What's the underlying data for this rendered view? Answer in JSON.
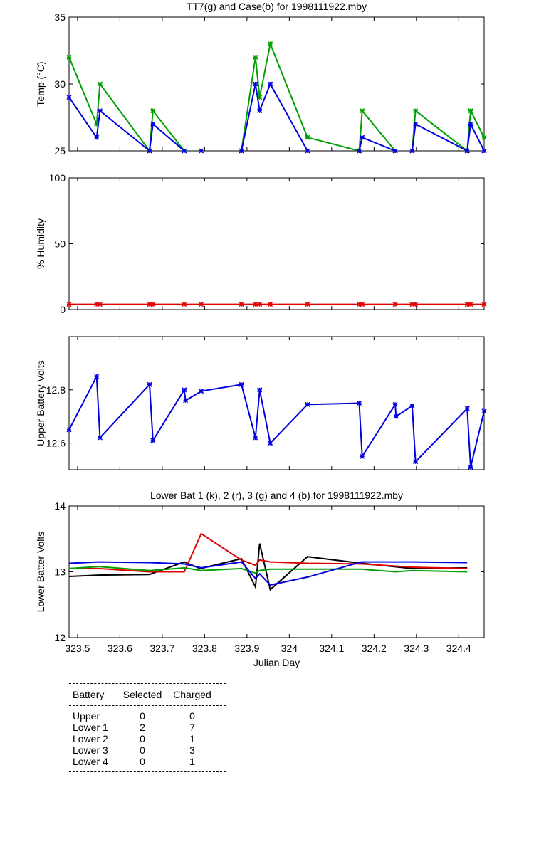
{
  "colors": {
    "green": "#00a000",
    "blue": "#0000e0",
    "red": "#e00000",
    "black": "#000000"
  },
  "chart_data": [
    {
      "type": "line",
      "title": "TT7(g) and Case(b) for 1998111922.mby",
      "xlabel": "",
      "ylabel": "Temp  (°C)",
      "xlim": [
        323.48,
        324.46
      ],
      "ylim": [
        25,
        35
      ],
      "yticks": [
        25,
        30,
        35
      ],
      "series": [
        {
          "color": "green",
          "markers": true,
          "segments": [
            [
              [
                323.48,
                32
              ],
              [
                323.545,
                27
              ],
              [
                323.553,
                30
              ],
              [
                323.67,
                25
              ],
              [
                323.678,
                28
              ],
              [
                323.752,
                25
              ]
            ],
            [
              [
                323.887,
                25
              ],
              [
                323.92,
                32
              ],
              [
                323.93,
                29
              ],
              [
                323.955,
                33
              ],
              [
                324.043,
                26
              ],
              [
                324.165,
                25
              ],
              [
                324.172,
                28
              ],
              [
                324.25,
                25
              ]
            ],
            [
              [
                324.29,
                25
              ],
              [
                324.298,
                28
              ],
              [
                324.42,
                25
              ],
              [
                324.428,
                28
              ],
              [
                324.46,
                26
              ]
            ]
          ]
        },
        {
          "color": "blue",
          "markers": true,
          "segments": [
            [
              [
                323.48,
                29
              ],
              [
                323.545,
                26
              ],
              [
                323.553,
                28
              ],
              [
                323.67,
                25
              ],
              [
                323.678,
                27
              ],
              [
                323.752,
                25
              ]
            ],
            [
              [
                323.792,
                25
              ]
            ],
            [
              [
                323.887,
                25
              ],
              [
                323.92,
                30
              ],
              [
                323.93,
                28
              ],
              [
                323.955,
                30
              ],
              [
                324.043,
                25
              ]
            ],
            [
              [
                324.165,
                25
              ],
              [
                324.172,
                26
              ],
              [
                324.25,
                25
              ]
            ],
            [
              [
                324.29,
                25
              ],
              [
                324.298,
                27
              ],
              [
                324.42,
                25
              ],
              [
                324.428,
                27
              ],
              [
                324.46,
                25
              ]
            ]
          ]
        }
      ]
    },
    {
      "type": "line",
      "title": "",
      "xlabel": "",
      "ylabel": "% Humidity",
      "xlim": [
        323.48,
        324.46
      ],
      "ylim": [
        0,
        100
      ],
      "yticks": [
        0,
        50,
        100
      ],
      "series": [
        {
          "color": "red",
          "markers": true,
          "segments": [
            [
              [
                323.48,
                4
              ],
              [
                323.545,
                4
              ],
              [
                323.553,
                4
              ],
              [
                323.67,
                4
              ],
              [
                323.678,
                4
              ],
              [
                323.752,
                4
              ],
              [
                323.792,
                4
              ],
              [
                323.887,
                4
              ],
              [
                323.92,
                4
              ],
              [
                323.93,
                4
              ],
              [
                323.955,
                4
              ],
              [
                324.043,
                4
              ],
              [
                324.165,
                4
              ],
              [
                324.172,
                4
              ],
              [
                324.25,
                4
              ],
              [
                324.29,
                4
              ],
              [
                324.298,
                4
              ],
              [
                324.42,
                4
              ],
              [
                324.428,
                4
              ],
              [
                324.46,
                4
              ]
            ]
          ]
        }
      ]
    },
    {
      "type": "line",
      "title": "",
      "xlabel": "",
      "ylabel": "Upper Battery Volts",
      "xlim": [
        323.48,
        324.46
      ],
      "ylim": [
        12.5,
        13.0
      ],
      "yticks": [
        12.6,
        12.8
      ],
      "series": [
        {
          "color": "blue",
          "markers": true,
          "segments": [
            [
              [
                323.48,
                12.65
              ],
              [
                323.545,
                12.85
              ],
              [
                323.553,
                12.62
              ],
              [
                323.67,
                12.82
              ],
              [
                323.678,
                12.61
              ],
              [
                323.752,
                12.8
              ],
              [
                323.755,
                12.76
              ],
              [
                323.792,
                12.795
              ],
              [
                323.887,
                12.82
              ],
              [
                323.92,
                12.62
              ],
              [
                323.93,
                12.8
              ],
              [
                323.955,
                12.6
              ],
              [
                324.043,
                12.745
              ],
              [
                324.165,
                12.75
              ],
              [
                324.172,
                12.55
              ],
              [
                324.25,
                12.745
              ],
              [
                324.252,
                12.7
              ],
              [
                324.29,
                12.74
              ],
              [
                324.298,
                12.53
              ],
              [
                324.42,
                12.73
              ],
              [
                324.428,
                12.51
              ],
              [
                324.46,
                12.72
              ]
            ]
          ]
        }
      ]
    },
    {
      "type": "line",
      "title": "Lower Bat 1 (k), 2 (r), 3 (g) and 4 (b) for 1998111922.mby",
      "xlabel": "Julian Day",
      "ylabel": "Lower Batter Volts",
      "xlim": [
        323.48,
        324.46
      ],
      "ylim": [
        12,
        14
      ],
      "yticks": [
        12,
        13,
        14
      ],
      "xticks": [
        323.5,
        323.6,
        323.7,
        323.8,
        323.9,
        324,
        324.1,
        324.2,
        324.3,
        324.4
      ],
      "xticklabels": [
        "323.5",
        "323.6",
        "323.7",
        "323.8",
        "323.9",
        "324",
        "324.1",
        "324.2",
        "324.3",
        "324.4"
      ],
      "series": [
        {
          "color": "black",
          "markers": false,
          "segments": [
            [
              [
                323.48,
                12.93
              ],
              [
                323.55,
                12.95
              ],
              [
                323.67,
                12.96
              ],
              [
                323.752,
                13.15
              ],
              [
                323.79,
                13.05
              ],
              [
                323.887,
                13.2
              ],
              [
                323.92,
                12.77
              ],
              [
                323.93,
                13.43
              ],
              [
                323.955,
                12.73
              ],
              [
                324.043,
                13.23
              ],
              [
                324.17,
                13.13
              ],
              [
                324.29,
                13.05
              ],
              [
                324.42,
                13.06
              ]
            ]
          ]
        },
        {
          "color": "red",
          "markers": false,
          "segments": [
            [
              [
                323.48,
                13.05
              ],
              [
                323.55,
                13.05
              ],
              [
                323.67,
                13.0
              ],
              [
                323.752,
                13.0
              ],
              [
                323.792,
                13.58
              ],
              [
                323.887,
                13.18
              ],
              [
                323.92,
                13.1
              ],
              [
                323.93,
                13.18
              ],
              [
                323.955,
                13.15
              ],
              [
                324.043,
                13.13
              ],
              [
                324.17,
                13.12
              ],
              [
                324.29,
                13.07
              ],
              [
                324.42,
                13.05
              ]
            ]
          ]
        },
        {
          "color": "green",
          "markers": false,
          "segments": [
            [
              [
                323.48,
                13.05
              ],
              [
                323.55,
                13.08
              ],
              [
                323.67,
                13.02
              ],
              [
                323.752,
                13.06
              ],
              [
                323.792,
                13.02
              ],
              [
                323.887,
                13.05
              ],
              [
                323.92,
                12.98
              ],
              [
                323.93,
                13.02
              ],
              [
                323.955,
                13.04
              ],
              [
                324.043,
                13.04
              ],
              [
                324.17,
                13.04
              ],
              [
                324.25,
                13.0
              ],
              [
                324.29,
                13.02
              ],
              [
                324.42,
                13.0
              ]
            ]
          ]
        },
        {
          "color": "blue",
          "markers": false,
          "segments": [
            [
              [
                323.48,
                13.13
              ],
              [
                323.55,
                13.15
              ],
              [
                323.67,
                13.14
              ],
              [
                323.752,
                13.12
              ],
              [
                323.792,
                13.06
              ],
              [
                323.887,
                13.15
              ],
              [
                323.92,
                12.9
              ],
              [
                323.93,
                12.97
              ],
              [
                323.955,
                12.8
              ],
              [
                324.043,
                12.92
              ],
              [
                324.17,
                13.15
              ],
              [
                324.29,
                13.15
              ],
              [
                324.42,
                13.14
              ]
            ]
          ]
        }
      ]
    }
  ],
  "battery_table": {
    "headers": {
      "battery": "Battery",
      "selected": "Selected",
      "charged": "Charged"
    },
    "rows": [
      {
        "battery": "Upper",
        "selected": "0",
        "charged": "0"
      },
      {
        "battery": "Lower 1",
        "selected": "2",
        "charged": "7"
      },
      {
        "battery": "Lower 2",
        "selected": "0",
        "charged": "1"
      },
      {
        "battery": "Lower 3",
        "selected": "0",
        "charged": "3"
      },
      {
        "battery": "Lower 4",
        "selected": "0",
        "charged": "1"
      }
    ]
  }
}
